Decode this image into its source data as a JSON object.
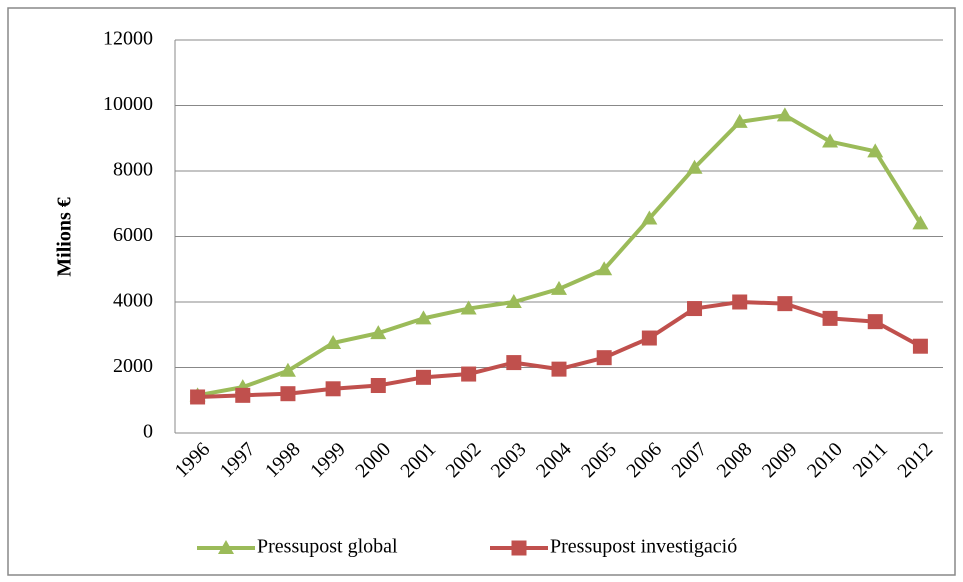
{
  "chart_data": {
    "type": "line",
    "y_label": "Milions €",
    "categories": [
      "1996",
      "1997",
      "1998",
      "1999",
      "2000",
      "2001",
      "2002",
      "2003",
      "2004",
      "2005",
      "2006",
      "2007",
      "2008",
      "2009",
      "2010",
      "2011",
      "2012"
    ],
    "series": [
      {
        "name": "Pressupost global",
        "color": "#9bbb59",
        "marker": "triangle",
        "values": [
          1150,
          1400,
          1900,
          2750,
          3050,
          3500,
          3800,
          4000,
          4400,
          5000,
          6550,
          8100,
          9500,
          9700,
          8900,
          8600,
          6400
        ]
      },
      {
        "name": "Pressupost investigació",
        "color": "#c0504d",
        "marker": "square",
        "values": [
          1100,
          1150,
          1200,
          1350,
          1450,
          1700,
          1800,
          2150,
          1950,
          2300,
          2900,
          3800,
          4000,
          3950,
          3500,
          3400,
          2650
        ]
      }
    ],
    "ylim": [
      0,
      12000
    ],
    "yticks": [
      0,
      2000,
      4000,
      6000,
      8000,
      10000,
      12000
    ],
    "grid": true,
    "legend": "bottom"
  }
}
